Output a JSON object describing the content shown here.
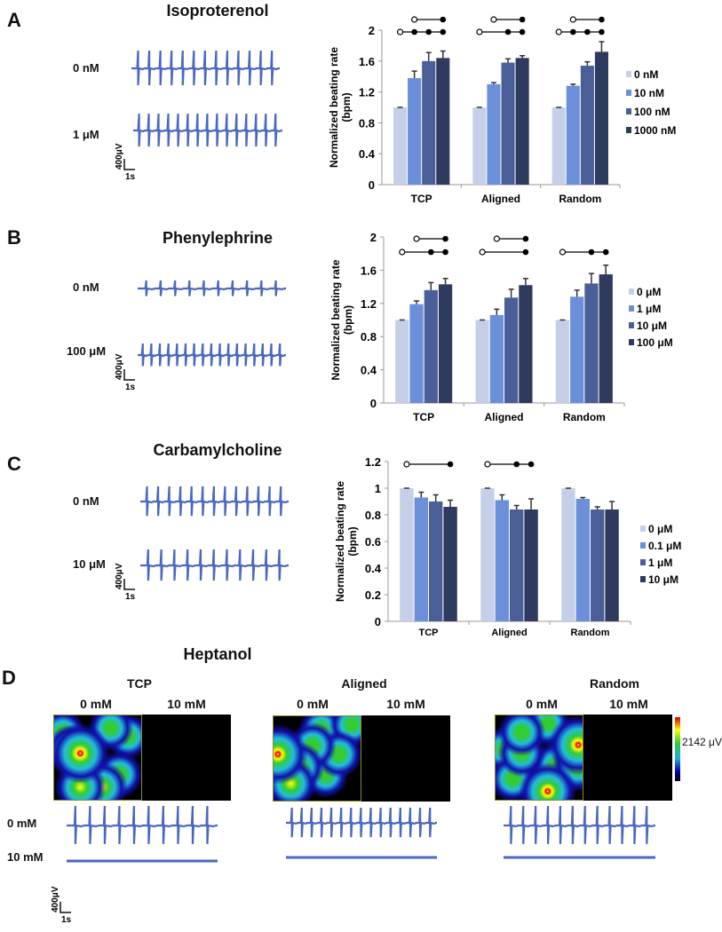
{
  "panels": {
    "A": {
      "letter": "A",
      "title": "Isoproterenol",
      "traces": [
        {
          "label": "0 nM",
          "beats": 13
        },
        {
          "label": "1 μM",
          "beats": 15
        }
      ],
      "scale": {
        "v": "400μV",
        "t": "1s"
      }
    },
    "B": {
      "letter": "B",
      "title": "Phenylephrine",
      "traces": [
        {
          "label": "0 nM",
          "beats": 10
        },
        {
          "label": "100 μM",
          "beats": 17
        }
      ],
      "scale": {
        "v": "400μV",
        "t": "1s"
      }
    },
    "C": {
      "letter": "C",
      "title": "Carbamylcholine",
      "traces": [
        {
          "label": "0 nM",
          "beats": 13
        },
        {
          "label": "10 μM",
          "beats": 11
        }
      ],
      "scale": {
        "v": "400μV",
        "t": "1s"
      }
    },
    "D": {
      "letter": "D",
      "title": "Heptanol",
      "columns": [
        {
          "name": "TCP",
          "beats": 10
        },
        {
          "name": "Aligned",
          "beats": 15
        },
        {
          "name": "Random",
          "beats": 12
        }
      ],
      "doses": [
        "0 mM",
        "10 mM"
      ],
      "colorbar_label": "2142 μV",
      "scale": {
        "v": "400μV",
        "t": "1s"
      }
    }
  },
  "colors": {
    "trace": "#4a68c0",
    "series": [
      "#c5d0e8",
      "#6b8fd8",
      "#4a5f98",
      "#2e3a5e"
    ]
  },
  "chart_data": [
    {
      "type": "bar",
      "ylabel": "Normalized beating rate (bpm)",
      "categories": [
        "TCP",
        "Aligned",
        "Random"
      ],
      "ylim": [
        0,
        2
      ],
      "yticks": [
        0,
        0.4,
        0.8,
        1.2,
        1.6,
        2
      ],
      "tickLabels": [
        "0",
        "0.4",
        "0.8",
        "1.2",
        "1.6",
        "2"
      ],
      "series": [
        {
          "name": "0 nM",
          "values": [
            1,
            1,
            1
          ],
          "errors": [
            0,
            0,
            0
          ]
        },
        {
          "name": "10 nM",
          "values": [
            1.38,
            1.3,
            1.28
          ],
          "errors": [
            0.09,
            0.02,
            0.02
          ]
        },
        {
          "name": "100 nM",
          "values": [
            1.6,
            1.58,
            1.54
          ],
          "errors": [
            0.11,
            0.05,
            0.05
          ]
        },
        {
          "name": "1000 nM",
          "values": [
            1.64,
            1.64,
            1.72
          ],
          "errors": [
            0.09,
            0.03,
            0.13
          ]
        }
      ],
      "significance": [
        [
          {
            "open": 1,
            "filled": [
              3
            ]
          },
          {
            "open": 0,
            "filled": [
              1,
              2,
              3
            ]
          }
        ],
        [
          {
            "open": 1,
            "filled": [
              3
            ]
          },
          {
            "open": 0,
            "filled": [
              2,
              3
            ]
          }
        ],
        [
          {
            "open": 1,
            "filled": [
              3
            ]
          },
          {
            "open": 0,
            "filled": [
              1,
              2,
              3
            ]
          }
        ]
      ],
      "legend": "right"
    },
    {
      "type": "bar",
      "ylabel": "Normalized beating rate (bpm)",
      "categories": [
        "TCP",
        "Aligned",
        "Random"
      ],
      "ylim": [
        0,
        2
      ],
      "yticks": [
        0,
        0.4,
        0.8,
        1.2,
        1.6,
        2
      ],
      "tickLabels": [
        "0",
        "0.4",
        "0.8",
        "1.2",
        "1.6",
        "2"
      ],
      "series": [
        {
          "name": "0 μM",
          "values": [
            1,
            1,
            1
          ],
          "errors": [
            0,
            0,
            0
          ]
        },
        {
          "name": "1 μM",
          "values": [
            1.19,
            1.06,
            1.28
          ],
          "errors": [
            0.04,
            0.07,
            0.08
          ]
        },
        {
          "name": "10 μM",
          "values": [
            1.36,
            1.27,
            1.44
          ],
          "errors": [
            0.09,
            0.1,
            0.12
          ]
        },
        {
          "name": "100 μM",
          "values": [
            1.43,
            1.42,
            1.55
          ],
          "errors": [
            0.07,
            0.08,
            0.11
          ]
        }
      ],
      "significance": [
        [
          {
            "open": 1,
            "filled": [
              3
            ]
          },
          {
            "open": 0,
            "filled": [
              2,
              3
            ]
          }
        ],
        [
          {
            "open": 1,
            "filled": [
              3
            ]
          },
          {
            "open": 0,
            "filled": [
              3
            ]
          }
        ],
        [
          null,
          {
            "open": 0,
            "filled": [
              2,
              3
            ]
          }
        ]
      ],
      "legend": "right"
    },
    {
      "type": "bar",
      "ylabel": "Normalized beating rate (bpm)",
      "categories": [
        "TCP",
        "Aligned",
        "Random"
      ],
      "ylim": [
        0,
        1.2
      ],
      "yticks": [
        0,
        0.2,
        0.4,
        0.6,
        0.8,
        1,
        1.2
      ],
      "tickLabels": [
        "0",
        "0.2",
        "0.4",
        "0.6",
        "0.8",
        "1",
        "1.2"
      ],
      "series": [
        {
          "name": "0 μM",
          "values": [
            1,
            1,
            1
          ],
          "errors": [
            0,
            0,
            0
          ]
        },
        {
          "name": "0.1 μM",
          "values": [
            0.93,
            0.91,
            0.92
          ],
          "errors": [
            0.04,
            0.04,
            0.01
          ]
        },
        {
          "name": "1 μM",
          "values": [
            0.9,
            0.84,
            0.84
          ],
          "errors": [
            0.05,
            0.03,
            0.02
          ]
        },
        {
          "name": "10 μM",
          "values": [
            0.86,
            0.84,
            0.84
          ],
          "errors": [
            0.05,
            0.08,
            0.06
          ]
        }
      ],
      "significance": [
        [
          {
            "open": 0,
            "filled": [
              3
            ]
          }
        ],
        [
          {
            "open": 0,
            "filled": [
              2,
              3
            ]
          }
        ],
        []
      ],
      "legend": "right"
    }
  ]
}
